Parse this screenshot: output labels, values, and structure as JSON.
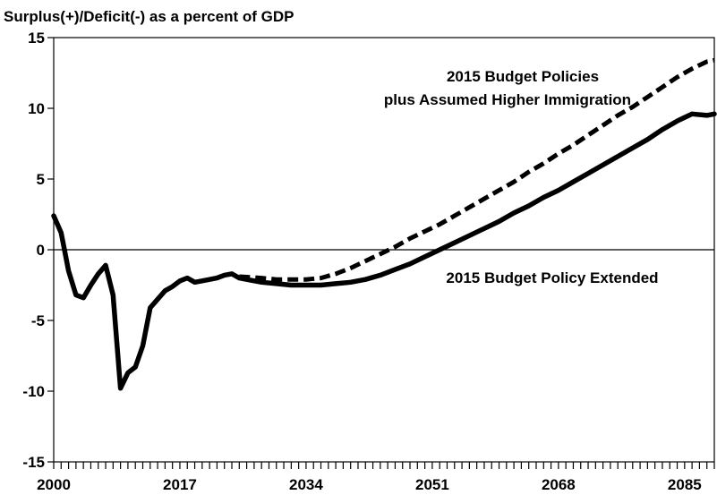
{
  "chart_data": {
    "type": "line",
    "ylabel": "Surplus(+)/Deficit(-) as a percent of GDP",
    "xlim": [
      2000,
      2089
    ],
    "ylim": [
      -15,
      15
    ],
    "x_ticks": [
      2000,
      2017,
      2034,
      2051,
      2068,
      2085
    ],
    "y_ticks": [
      15,
      10,
      5,
      0,
      -5,
      -10,
      -15
    ],
    "grid": false,
    "zero_line": true,
    "annotations": [
      {
        "lines": [
          "2015 Budget Policies",
          "plus Assumed Higher Immigration"
        ],
        "series": "higher_immigration"
      },
      {
        "lines": [
          "2015 Budget Policy Extended"
        ],
        "series": "policy_extended"
      }
    ],
    "series": [
      {
        "id": "policy_extended",
        "style": "solid",
        "color": "#000000",
        "x": [
          2000,
          2001,
          2002,
          2003,
          2004,
          2005,
          2006,
          2007,
          2008,
          2009,
          2010,
          2011,
          2012,
          2013,
          2014,
          2015,
          2016,
          2017,
          2018,
          2019,
          2020,
          2021,
          2022,
          2023,
          2024,
          2025,
          2026,
          2028,
          2030,
          2032,
          2034,
          2036,
          2038,
          2040,
          2042,
          2044,
          2046,
          2048,
          2050,
          2052,
          2054,
          2056,
          2058,
          2060,
          2062,
          2064,
          2066,
          2068,
          2070,
          2072,
          2074,
          2076,
          2078,
          2080,
          2082,
          2084,
          2086,
          2088,
          2089
        ],
        "y": [
          2.4,
          1.2,
          -1.5,
          -3.2,
          -3.4,
          -2.5,
          -1.7,
          -1.1,
          -3.2,
          -9.8,
          -8.7,
          -8.3,
          -6.8,
          -4.1,
          -3.5,
          -2.9,
          -2.6,
          -2.2,
          -2.0,
          -2.3,
          -2.2,
          -2.1,
          -2.0,
          -1.8,
          -1.7,
          -2.0,
          -2.1,
          -2.3,
          -2.4,
          -2.5,
          -2.5,
          -2.5,
          -2.4,
          -2.3,
          -2.1,
          -1.8,
          -1.4,
          -1.0,
          -0.5,
          0.0,
          0.5,
          1.0,
          1.5,
          2.0,
          2.6,
          3.1,
          3.7,
          4.2,
          4.8,
          5.4,
          6.0,
          6.6,
          7.2,
          7.8,
          8.5,
          9.1,
          9.6,
          9.5,
          9.6
        ]
      },
      {
        "id": "higher_immigration",
        "style": "dashed",
        "color": "#000000",
        "x": [
          2025,
          2028,
          2030,
          2032,
          2034,
          2036,
          2038,
          2040,
          2042,
          2044,
          2046,
          2048,
          2050,
          2052,
          2054,
          2056,
          2058,
          2060,
          2062,
          2064,
          2066,
          2068,
          2070,
          2072,
          2074,
          2076,
          2078,
          2080,
          2082,
          2084,
          2086,
          2088,
          2089
        ],
        "y": [
          -1.9,
          -2.0,
          -2.1,
          -2.1,
          -2.1,
          -2.0,
          -1.7,
          -1.3,
          -0.8,
          -0.3,
          0.2,
          0.8,
          1.3,
          1.8,
          2.4,
          3.0,
          3.6,
          4.2,
          4.8,
          5.5,
          6.1,
          6.8,
          7.4,
          8.1,
          8.8,
          9.5,
          10.1,
          10.8,
          11.5,
          12.2,
          12.8,
          13.3,
          13.4
        ]
      }
    ]
  }
}
